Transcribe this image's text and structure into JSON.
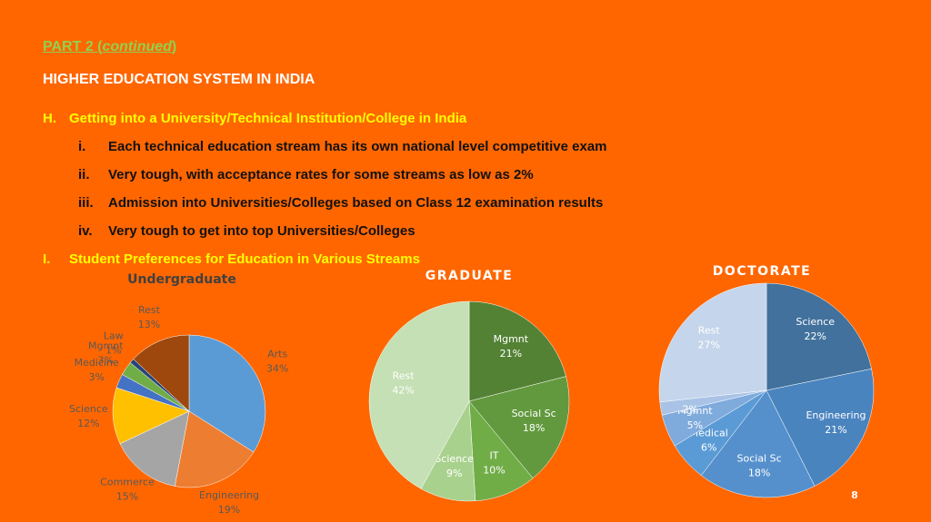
{
  "header": {
    "part_prefix": "PART 2 (",
    "part_italic": "continued",
    "part_suffix": ")",
    "title": "HIGHER EDUCATION SYSTEM IN INDIA"
  },
  "sections": [
    {
      "marker": "H.",
      "text": "Getting into a University/Technical Institution/College in India",
      "items": [
        {
          "marker": "i.",
          "text": "Each technical education stream has its own national level competitive exam"
        },
        {
          "marker": "ii.",
          "text": "Very tough, with acceptance rates for some streams as low as 2%"
        },
        {
          "marker": "iii.",
          "text": "Admission into Universities/Colleges based on Class 12 examination results"
        },
        {
          "marker": "iv.",
          "text": "Very tough to get into top Universities/Colleges"
        }
      ]
    },
    {
      "marker": "I.",
      "text": "Student Preferences for Education in Various Streams",
      "items": []
    }
  ],
  "chart_data": [
    {
      "type": "pie",
      "title": "Undergraduate",
      "categories": [
        "Arts",
        "Engineering",
        "Commerce",
        "Science",
        "Medicine",
        "Mgmnt",
        "Law",
        "Rest"
      ],
      "values": [
        34,
        19,
        15,
        12,
        3,
        3,
        1,
        13
      ],
      "value_labels": [
        "34%",
        "19%",
        "15%",
        "12%",
        "3%",
        "3%",
        "1%",
        "13%"
      ],
      "colors": [
        "#5b9bd5",
        "#ed7d31",
        "#a5a5a5",
        "#ffc000",
        "#4472c4",
        "#70ad47",
        "#264478",
        "#9e480e"
      ]
    },
    {
      "type": "pie",
      "title": "GRADUATE",
      "categories": [
        "Mgmnt",
        "Social Sc",
        "IT",
        "Science",
        "Rest"
      ],
      "values": [
        21,
        18,
        10,
        9,
        42
      ],
      "value_labels": [
        "21%",
        "18%",
        "10%",
        "9%",
        "42%"
      ],
      "colors": [
        "#548235",
        "#62993e",
        "#70ad47",
        "#a9d18e",
        "#c5e0b4"
      ]
    },
    {
      "type": "pie",
      "title": "DOCTORATE",
      "categories": [
        "Science",
        "Engineering",
        "Social Sc",
        "Medical",
        "Mgmnt",
        "IT",
        "Rest"
      ],
      "values": [
        22,
        21,
        18,
        6,
        5,
        2,
        27
      ],
      "value_labels": [
        "22%",
        "21%",
        "18%",
        "6%",
        "5%",
        "2%",
        "27%"
      ],
      "colors": [
        "#41719c",
        "#4a84bf",
        "#5590cc",
        "#5b9bd5",
        "#7faadc",
        "#a9c3e6",
        "#c5d5ec"
      ]
    }
  ],
  "page_number": "8"
}
